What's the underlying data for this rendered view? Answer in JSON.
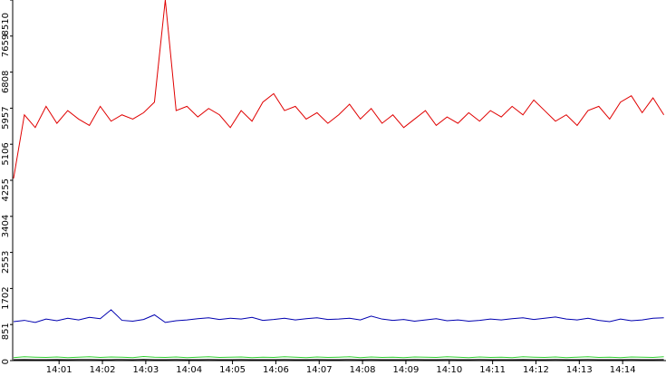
{
  "chart_data": {
    "type": "line",
    "x": [
      839.95,
      840.2,
      840.45,
      840.7,
      840.95,
      841.2,
      841.45,
      841.7,
      841.95,
      842.2,
      842.45,
      842.7,
      842.95,
      843.2,
      843.45,
      843.7,
      843.95,
      844.2,
      844.45,
      844.7,
      844.95,
      845.2,
      845.45,
      845.7,
      845.95,
      846.2,
      846.45,
      846.7,
      846.95,
      847.2,
      847.45,
      847.7,
      847.95,
      848.2,
      848.45,
      848.7,
      848.95,
      849.2,
      849.45,
      849.7,
      849.95,
      850.2,
      850.45,
      850.7,
      850.95,
      851.2,
      851.45,
      851.7,
      851.95,
      852.2,
      852.45,
      852.7,
      852.95,
      853.2,
      853.45,
      853.7,
      853.95,
      854.2,
      854.45,
      854.7,
      854.95
    ],
    "xlim": [
      839.93,
      855.0
    ],
    "xticks": [
      {
        "value": 841,
        "label": "14:01"
      },
      {
        "value": 842,
        "label": "14:02"
      },
      {
        "value": 843,
        "label": "14:03"
      },
      {
        "value": 844,
        "label": "14:04"
      },
      {
        "value": 845,
        "label": "14:05"
      },
      {
        "value": 846,
        "label": "14:06"
      },
      {
        "value": 847,
        "label": "14:07"
      },
      {
        "value": 848,
        "label": "14:08"
      },
      {
        "value": 849,
        "label": "14:09"
      },
      {
        "value": 850,
        "label": "14:10"
      },
      {
        "value": 851,
        "label": "14:11"
      },
      {
        "value": 852,
        "label": "14:12"
      },
      {
        "value": 853,
        "label": "14:13"
      },
      {
        "value": 854,
        "label": "14:14"
      }
    ],
    "ylim": [
      0,
      8510
    ],
    "yticks": [
      0,
      851,
      1702,
      2553,
      3404,
      4255,
      5106,
      5957,
      6808,
      7659,
      8510
    ],
    "series": [
      {
        "color": "#e00000",
        "values": [
          4300,
          5800,
          5500,
          6000,
          5600,
          5900,
          5700,
          5550,
          6000,
          5650,
          5800,
          5700,
          5850,
          6100,
          8510,
          5900,
          6000,
          5750,
          5950,
          5800,
          5500,
          5900,
          5650,
          6100,
          6300,
          5900,
          6000,
          5700,
          5850,
          5600,
          5800,
          6050,
          5700,
          5950,
          5600,
          5800,
          5500,
          5700,
          5900,
          5550,
          5750,
          5600,
          5850,
          5650,
          5900,
          5750,
          6000,
          5800,
          6150,
          5900,
          5650,
          5800,
          5550,
          5900,
          6000,
          5700,
          6100,
          6250,
          5850,
          6200,
          5800
        ]
      },
      {
        "color": "#0000b0",
        "values": [
          920,
          950,
          900,
          980,
          940,
          1000,
          960,
          1020,
          990,
          1200,
          950,
          930,
          970,
          1080,
          900,
          940,
          960,
          990,
          1010,
          970,
          1000,
          980,
          1020,
          950,
          970,
          1000,
          960,
          990,
          1010,
          970,
          980,
          1000,
          960,
          1050,
          980,
          950,
          970,
          930,
          960,
          990,
          940,
          960,
          930,
          950,
          980,
          960,
          990,
          1010,
          970,
          1000,
          1030,
          980,
          960,
          1000,
          950,
          920,
          980,
          940,
          960,
          1000,
          1010
        ]
      },
      {
        "color": "#30d030",
        "values": [
          70,
          90,
          80,
          75,
          85,
          70,
          80,
          90,
          75,
          85,
          80,
          70,
          95,
          80,
          75,
          85,
          70,
          80,
          90,
          75,
          80,
          85,
          70,
          80,
          75,
          90,
          80,
          70,
          85,
          75,
          80,
          90,
          70,
          85,
          75,
          80,
          70,
          85,
          80,
          75,
          90,
          80,
          70,
          85,
          75,
          80,
          70,
          90,
          80,
          75,
          85,
          70,
          80,
          90,
          75,
          80,
          70,
          85,
          80,
          75,
          90
        ]
      },
      {
        "color": "#000000",
        "values": [
          20,
          25,
          20,
          22,
          24,
          20,
          23,
          25,
          21,
          22,
          24,
          20,
          26,
          22,
          21,
          23,
          20,
          22,
          24,
          21,
          22,
          23,
          20,
          22,
          21,
          24,
          22,
          20,
          23,
          21,
          22,
          24,
          20,
          23,
          21,
          22,
          20,
          23,
          22,
          21,
          24,
          22,
          20,
          23,
          21,
          22,
          20,
          24,
          22,
          21,
          23,
          20,
          22,
          24,
          21,
          22,
          20,
          23,
          22,
          21,
          24
        ]
      }
    ]
  }
}
